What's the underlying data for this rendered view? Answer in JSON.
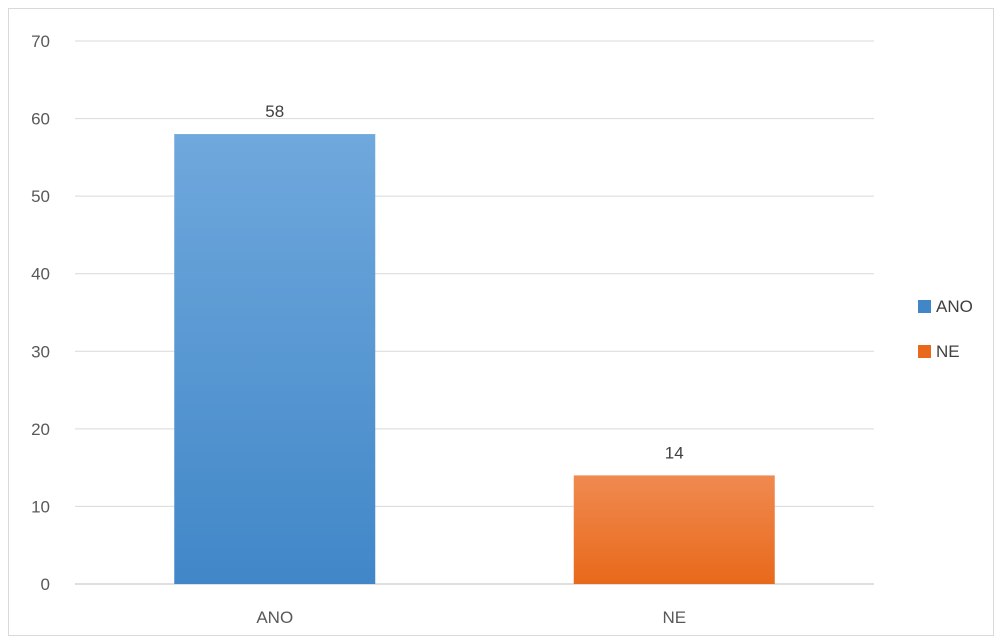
{
  "chart_data": {
    "type": "bar",
    "categories": [
      "ANO",
      "NE"
    ],
    "values": [
      58,
      14
    ],
    "data_labels": [
      "58",
      "14"
    ],
    "ylim": [
      0,
      70
    ],
    "yticks": [
      0,
      10,
      20,
      30,
      40,
      50,
      60,
      70
    ],
    "ytick_labels": [
      "0",
      "10",
      "20",
      "30",
      "40",
      "50",
      "60",
      "70"
    ],
    "grid": true,
    "legend": {
      "placement": "right",
      "entries": [
        "ANO",
        "NE"
      ]
    },
    "colors": {
      "ANO": {
        "top": "#6fa8dc",
        "bottom": "#4187c8"
      },
      "NE": {
        "top": "#f08a50",
        "bottom": "#e8691b"
      }
    },
    "title": "",
    "xlabel": "",
    "ylabel": ""
  }
}
